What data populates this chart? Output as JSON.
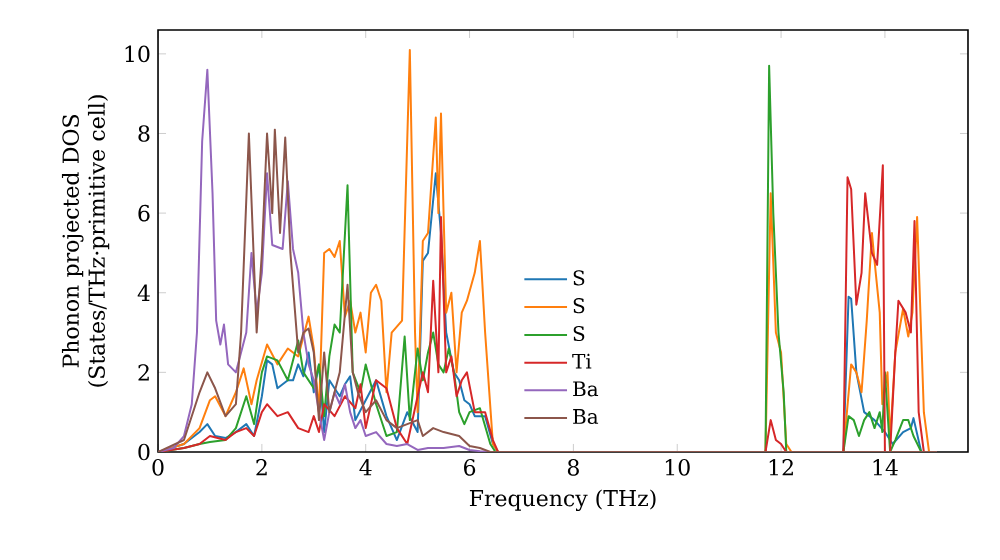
{
  "chart_data": {
    "type": "line",
    "xlabel": "Frequency (THz)",
    "ylabel": "Phonon projected DOS (States/THz·primitive cell)",
    "xlim": [
      0,
      15.6
    ],
    "ylim": [
      0,
      10.6
    ],
    "xticks": [
      0,
      2,
      4,
      6,
      8,
      10,
      12,
      14
    ],
    "yticks": [
      0,
      2,
      4,
      6,
      8,
      10
    ],
    "grid": false,
    "legend": "bottom",
    "marker": "none",
    "line_style": "solid",
    "series": [
      {
        "name": "S",
        "color": "#1f77b4",
        "x": [
          0,
          0.5,
          0.8,
          0.95,
          1.1,
          1.3,
          1.5,
          1.7,
          1.85,
          2.0,
          2.1,
          2.2,
          2.3,
          2.5,
          2.6,
          2.7,
          2.8,
          2.9,
          3.0,
          3.1,
          3.2,
          3.3,
          3.5,
          3.6,
          3.7,
          3.8,
          4.0,
          4.2,
          4.4,
          4.6,
          4.8,
          5.0,
          5.1,
          5.2,
          5.35,
          5.45,
          5.55,
          5.7,
          5.8,
          5.9,
          6.0,
          6.1,
          6.3,
          6.45,
          6.55,
          13.2,
          13.3,
          13.35,
          13.45,
          13.6,
          13.8,
          14.0,
          14.15,
          14.35,
          14.5,
          14.55,
          14.7,
          15.0
        ],
        "values": [
          0,
          0.2,
          0.5,
          0.7,
          0.4,
          0.35,
          0.5,
          0.7,
          0.4,
          1.4,
          2.3,
          2.2,
          1.6,
          1.8,
          1.8,
          2.2,
          1.9,
          2.5,
          1.5,
          2.2,
          0.5,
          1.8,
          1.4,
          1.7,
          1.9,
          0.8,
          1.3,
          1.8,
          0.9,
          0.3,
          1.0,
          0.5,
          4.8,
          5.0,
          7.0,
          5.5,
          3.0,
          2.0,
          1.8,
          1.3,
          1.2,
          0.9,
          0.9,
          0.2,
          0,
          0,
          3.9,
          3.85,
          2.0,
          1.0,
          0.8,
          0.5,
          0.2,
          0.5,
          0.6,
          0.85,
          0,
          0
        ]
      },
      {
        "name": "S",
        "color": "#ff7f0e",
        "x": [
          0,
          0.5,
          0.8,
          1.0,
          1.1,
          1.3,
          1.5,
          1.65,
          1.8,
          1.9,
          2.1,
          2.3,
          2.5,
          2.7,
          2.9,
          3.0,
          3.1,
          3.2,
          3.3,
          3.4,
          3.5,
          3.6,
          3.7,
          3.8,
          3.9,
          4.0,
          4.1,
          4.2,
          4.3,
          4.4,
          4.5,
          4.7,
          4.85,
          4.95,
          5.0,
          5.1,
          5.2,
          5.35,
          5.4,
          5.45,
          5.55,
          5.65,
          5.75,
          5.85,
          5.95,
          6.1,
          6.2,
          6.3,
          6.45,
          6.55,
          11.7,
          11.8,
          11.9,
          12.0,
          12.1,
          12.2,
          13.2,
          13.35,
          13.45,
          13.55,
          13.65,
          13.75,
          13.8,
          13.9,
          13.95,
          14.05,
          14.1,
          14.2,
          14.35,
          14.45,
          14.53,
          14.62,
          14.75,
          14.85,
          15.0
        ],
        "values": [
          0,
          0.2,
          0.6,
          1.3,
          1.4,
          0.9,
          1.5,
          2.1,
          1.2,
          1.8,
          2.7,
          2.2,
          2.6,
          2.4,
          3.4,
          2.6,
          1.0,
          5.0,
          5.1,
          4.9,
          5.3,
          3.4,
          3.8,
          3.0,
          3.5,
          2.5,
          4.0,
          4.2,
          3.8,
          1.5,
          3.0,
          3.3,
          10.1,
          3.0,
          1.0,
          5.3,
          5.5,
          8.4,
          6.0,
          8.5,
          3.5,
          4.0,
          2.0,
          3.5,
          3.8,
          4.5,
          5.3,
          3.0,
          0.2,
          0,
          0,
          6.5,
          3.0,
          2.5,
          0.2,
          0,
          0,
          2.2,
          2.0,
          1.5,
          3.3,
          5.5,
          4.8,
          3.5,
          1.2,
          2.0,
          0.3,
          2.5,
          3.6,
          2.9,
          3.5,
          5.9,
          1.0,
          0,
          0
        ]
      },
      {
        "name": "S",
        "color": "#2ca02c",
        "x": [
          0,
          0.5,
          0.8,
          1.0,
          1.3,
          1.5,
          1.7,
          1.85,
          2.0,
          2.1,
          2.3,
          2.5,
          2.7,
          2.8,
          3.0,
          3.1,
          3.2,
          3.3,
          3.4,
          3.5,
          3.65,
          3.75,
          3.9,
          4.0,
          4.2,
          4.4,
          4.6,
          4.75,
          4.85,
          5.0,
          5.1,
          5.2,
          5.3,
          5.4,
          5.5,
          5.6,
          5.7,
          5.8,
          5.9,
          6.0,
          6.2,
          6.4,
          6.5,
          11.7,
          11.77,
          11.85,
          11.95,
          12.05,
          12.1,
          13.2,
          13.3,
          13.4,
          13.5,
          13.6,
          13.7,
          13.8,
          13.9,
          13.95,
          14.0,
          14.1,
          14.2,
          14.35,
          14.45,
          14.55,
          14.7,
          15.0
        ],
        "values": [
          0,
          0.1,
          0.2,
          0.25,
          0.3,
          0.6,
          1.4,
          0.7,
          2.0,
          2.4,
          2.3,
          1.8,
          2.8,
          2.0,
          1.6,
          2.2,
          0.9,
          2.4,
          3.2,
          3.0,
          6.7,
          2.0,
          1.5,
          2.2,
          1.2,
          0.4,
          0.5,
          2.9,
          0.8,
          2.6,
          1.8,
          2.5,
          3.0,
          2.2,
          2.0,
          2.6,
          2.0,
          1.0,
          0.7,
          1.0,
          1.1,
          0.2,
          0,
          0,
          9.7,
          6.0,
          3.0,
          1.5,
          0,
          0,
          0.9,
          0.8,
          0.4,
          0.8,
          1.0,
          0.6,
          1.0,
          0.5,
          2.0,
          0,
          0.3,
          0.8,
          0.8,
          0.4,
          0,
          0
        ]
      },
      {
        "name": "Ti",
        "color": "#d62728",
        "x": [
          0,
          0.5,
          0.8,
          1.0,
          1.3,
          1.5,
          1.7,
          1.85,
          2.0,
          2.1,
          2.3,
          2.5,
          2.7,
          2.9,
          3.0,
          3.1,
          3.2,
          3.4,
          3.6,
          3.8,
          3.9,
          4.0,
          4.2,
          4.4,
          4.6,
          4.8,
          5.0,
          5.1,
          5.2,
          5.3,
          5.4,
          5.45,
          5.55,
          5.65,
          5.75,
          5.85,
          5.95,
          6.1,
          6.3,
          6.45,
          6.55,
          11.7,
          11.8,
          11.9,
          12.0,
          12.1,
          13.2,
          13.28,
          13.35,
          13.45,
          13.55,
          13.62,
          13.75,
          13.85,
          13.96,
          14.0,
          14.1,
          14.2,
          14.26,
          14.4,
          14.5,
          14.57,
          14.65,
          14.75,
          15.0
        ],
        "values": [
          0,
          0.1,
          0.2,
          0.4,
          0.3,
          0.5,
          0.6,
          0.4,
          1.0,
          1.2,
          0.9,
          1.0,
          0.6,
          0.5,
          0.9,
          0.5,
          1.2,
          0.9,
          1.4,
          1.1,
          1.7,
          0.6,
          1.8,
          1.6,
          0.6,
          0.2,
          1.4,
          2.0,
          1.5,
          4.3,
          2.0,
          5.9,
          2.0,
          2.4,
          1.4,
          1.8,
          2.0,
          1.0,
          1.0,
          0.3,
          0,
          0,
          0.8,
          0.3,
          0.2,
          0,
          0,
          6.9,
          6.6,
          3.7,
          4.5,
          6.5,
          5.0,
          4.7,
          7.2,
          0,
          0,
          2.5,
          3.8,
          3.5,
          3.0,
          5.8,
          1.0,
          0,
          0
        ]
      },
      {
        "name": "Ba",
        "color": "#9467bd",
        "x": [
          0,
          0.3,
          0.5,
          0.65,
          0.75,
          0.85,
          0.95,
          1.05,
          1.12,
          1.2,
          1.27,
          1.35,
          1.5,
          1.7,
          1.8,
          1.9,
          2.0,
          2.1,
          2.2,
          2.4,
          2.5,
          2.6,
          2.7,
          2.8,
          2.9,
          3.0,
          3.1,
          3.2,
          3.3,
          3.4,
          3.5,
          3.6,
          3.7,
          3.8,
          3.9,
          4.0,
          4.2,
          4.4,
          4.6,
          4.8,
          5.0,
          5.2,
          5.5,
          5.8,
          6.0,
          6.2,
          6.4,
          15.0
        ],
        "values": [
          0,
          0.1,
          0.4,
          1.2,
          3.0,
          7.8,
          9.6,
          6.5,
          3.3,
          2.7,
          3.2,
          2.2,
          2.0,
          3.0,
          5.0,
          3.5,
          4.5,
          7.0,
          5.2,
          5.1,
          6.8,
          5.1,
          4.5,
          3.0,
          2.2,
          1.8,
          1.0,
          0.3,
          1.0,
          1.5,
          1.2,
          1.7,
          1.0,
          0.6,
          0.8,
          0.4,
          0.5,
          0.2,
          0.15,
          0.2,
          0.05,
          0.1,
          0.1,
          0.15,
          0.05,
          0.02,
          0,
          0
        ]
      },
      {
        "name": "Ba",
        "color": "#8c564b",
        "x": [
          0,
          0.5,
          0.8,
          0.95,
          1.1,
          1.3,
          1.5,
          1.6,
          1.75,
          1.9,
          2.0,
          2.1,
          2.2,
          2.25,
          2.35,
          2.45,
          2.55,
          2.7,
          2.8,
          2.9,
          3.0,
          3.1,
          3.2,
          3.3,
          3.5,
          3.65,
          3.75,
          3.85,
          4.0,
          4.2,
          4.4,
          4.6,
          4.8,
          5.0,
          5.1,
          5.3,
          5.5,
          5.8,
          6.0,
          6.2,
          6.4,
          15.0
        ],
        "values": [
          0,
          0.3,
          1.5,
          2.0,
          1.6,
          0.9,
          1.2,
          3.0,
          8.0,
          3.0,
          5.0,
          8.0,
          6.0,
          8.1,
          5.5,
          7.9,
          5.0,
          2.5,
          3.0,
          3.1,
          2.5,
          0.8,
          2.5,
          1.0,
          2.0,
          4.2,
          2.0,
          1.5,
          1.0,
          1.3,
          0.8,
          0.6,
          0.7,
          0.8,
          0.4,
          0.6,
          0.5,
          0.4,
          0.15,
          0.1,
          0,
          0
        ]
      }
    ]
  }
}
